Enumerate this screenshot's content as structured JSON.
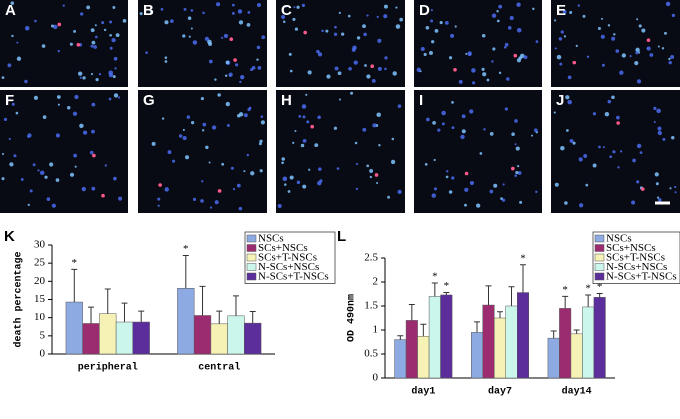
{
  "panels": [
    "A",
    "B",
    "C",
    "D",
    "E",
    "F",
    "G",
    "H",
    "I",
    "J"
  ],
  "chart_data": [
    {
      "type": "bar",
      "panel": "K",
      "ylabel": "death percentage",
      "categories": [
        "peripheral",
        "central"
      ],
      "ylim": [
        0,
        30
      ],
      "yticks": [
        0,
        5,
        10,
        15,
        20,
        25,
        30
      ],
      "grid": false,
      "series": [
        {
          "name": "NSCs",
          "color": "#8eaae2",
          "values": [
            14.3,
            18.1
          ],
          "errors": [
            9,
            9
          ],
          "annotations": [
            "*",
            "*"
          ]
        },
        {
          "name": "SCs+NSCs",
          "color": "#9c2c70",
          "values": [
            8.4,
            10.6
          ],
          "errors": [
            4.5,
            8
          ],
          "annotations": [
            null,
            null
          ]
        },
        {
          "name": "SCs+T-NSCs",
          "color": "#f6f1b4",
          "values": [
            11.1,
            8.3
          ],
          "errors": [
            6.8,
            3.5
          ],
          "annotations": [
            null,
            null
          ]
        },
        {
          "name": "N-SCs+NSCs",
          "color": "#cbf6ec",
          "values": [
            8.8,
            10.5
          ],
          "errors": [
            5.2,
            5.5
          ],
          "annotations": [
            null,
            null
          ]
        },
        {
          "name": "N-SCs+T-NSCs",
          "color": "#5b2e9c",
          "values": [
            8.8,
            8.5
          ],
          "errors": [
            3,
            3.2
          ],
          "annotations": [
            null,
            null
          ]
        }
      ]
    },
    {
      "type": "bar",
      "panel": "L",
      "ylabel": "OD 490nm",
      "categories": [
        "day1",
        "day7",
        "day14"
      ],
      "ylim": [
        0,
        2.5
      ],
      "yticks": [
        0,
        0.5,
        1,
        1.5,
        2,
        2.5
      ],
      "grid": false,
      "series": [
        {
          "name": "NSCs",
          "color": "#8eaae2",
          "values": [
            0.8,
            0.95,
            0.83
          ],
          "errors": [
            0.08,
            0.22,
            0.15
          ],
          "annotations": [
            null,
            null,
            null
          ]
        },
        {
          "name": "SCs+NSCs",
          "color": "#9c2c70",
          "values": [
            1.2,
            1.52,
            1.45
          ],
          "errors": [
            0.33,
            0.4,
            0.25
          ],
          "annotations": [
            null,
            null,
            "*"
          ]
        },
        {
          "name": "SCs+T-NSCs",
          "color": "#f6f1b4",
          "values": [
            0.87,
            1.25,
            0.92
          ],
          "errors": [
            0.25,
            0.13,
            0.08
          ],
          "annotations": [
            null,
            null,
            null
          ]
        },
        {
          "name": "N-SCs+NSCs",
          "color": "#cbf6ec",
          "values": [
            1.7,
            1.5,
            1.48
          ],
          "errors": [
            0.28,
            0.4,
            0.25
          ],
          "annotations": [
            "*",
            null,
            "*"
          ]
        },
        {
          "name": "N-SCs+T-NSCs",
          "color": "#5b2e9c",
          "values": [
            1.73,
            1.78,
            1.68
          ],
          "errors": [
            0.05,
            0.58,
            0.08
          ],
          "annotations": [
            "*",
            "*",
            "*"
          ]
        }
      ]
    }
  ]
}
